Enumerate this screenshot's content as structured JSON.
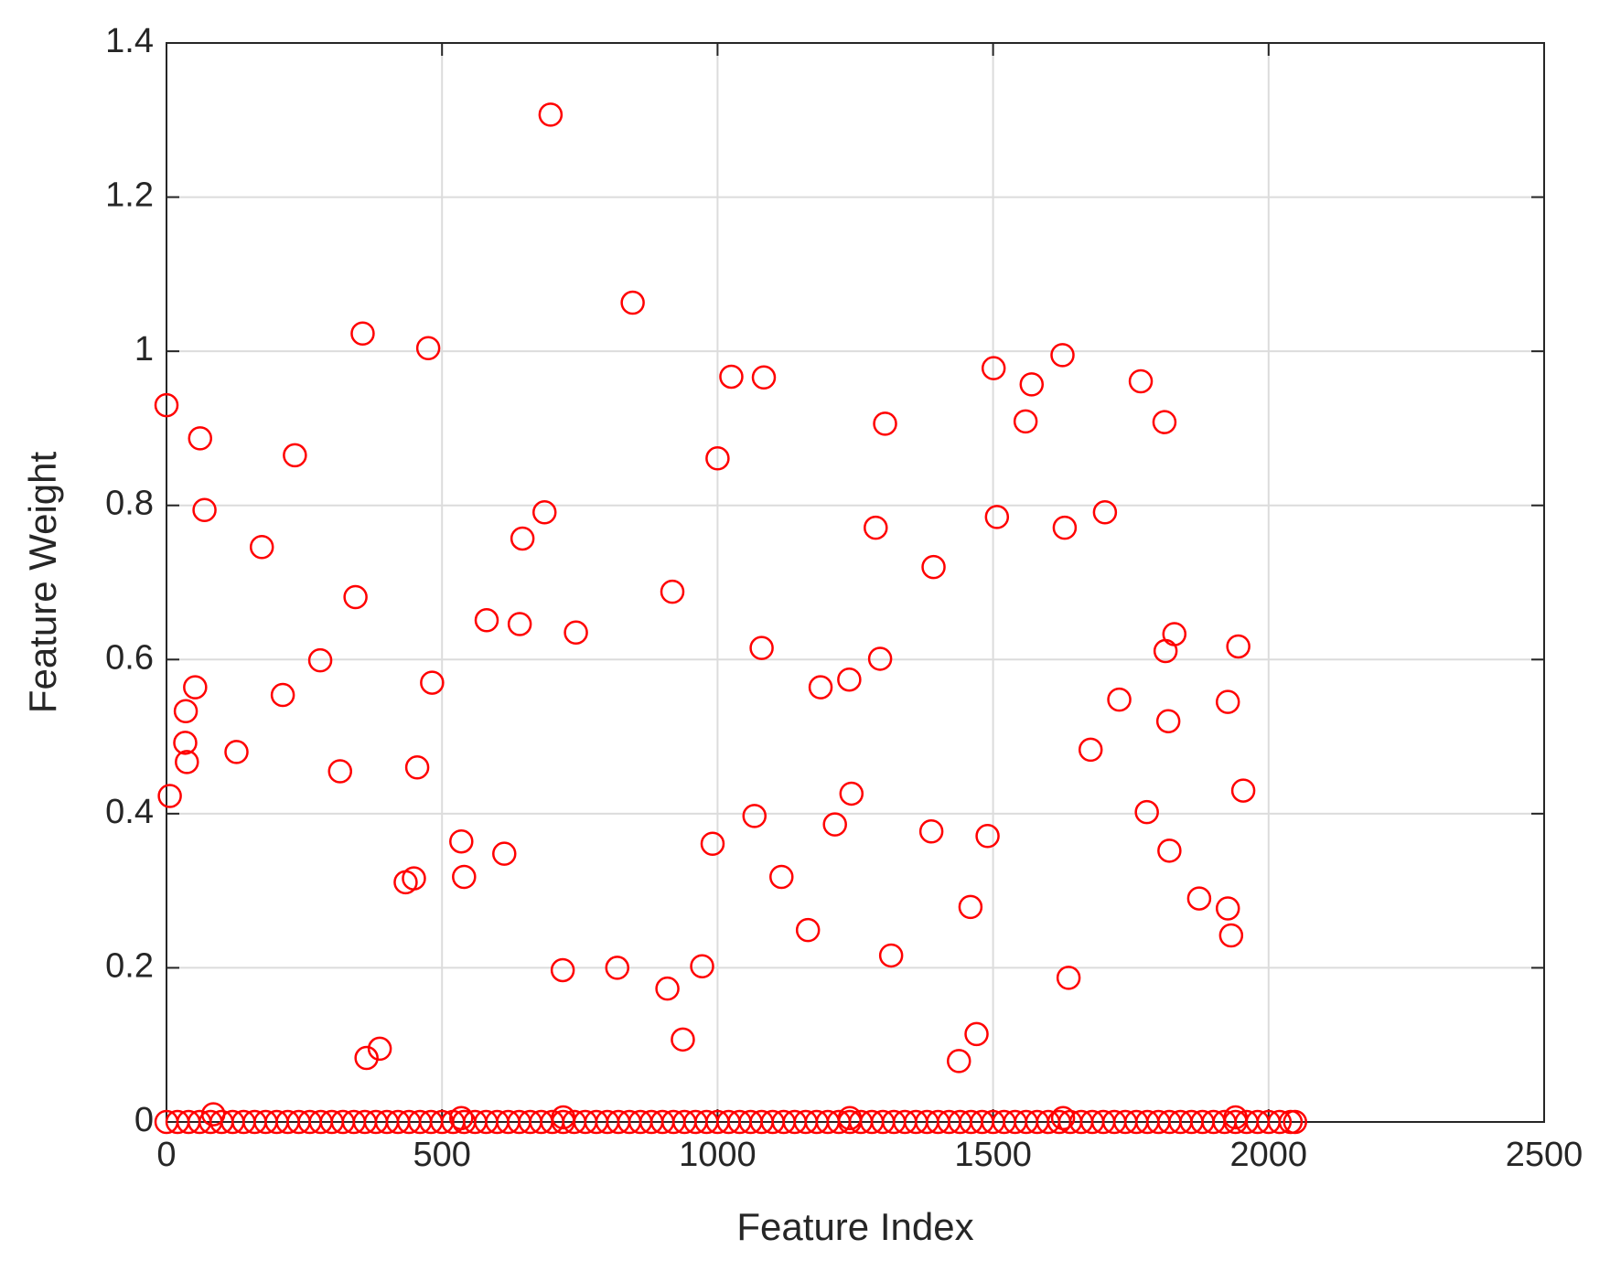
{
  "chart_data": {
    "type": "scatter",
    "xlabel": "Feature Index",
    "ylabel": "Feature Weight",
    "color": "#ff0000",
    "grid": true,
    "xlim": [
      0,
      2500
    ],
    "xticks": [
      0,
      500,
      1000,
      1500,
      2000,
      2500
    ],
    "ylim": [
      0,
      1.4
    ],
    "yticks": [
      0,
      0.2,
      0.4,
      0.6,
      0.8,
      1,
      1.2,
      1.4
    ],
    "x": [
      0,
      6,
      61,
      69,
      52,
      35,
      34,
      37,
      127,
      173,
      211,
      233,
      279,
      315,
      343,
      356,
      363,
      387,
      434,
      449,
      455,
      475,
      482,
      535,
      540,
      581,
      613,
      641,
      646,
      686,
      697,
      719,
      743,
      818,
      846,
      909,
      918,
      937,
      972,
      991,
      1000,
      1025,
      1067,
      1080,
      1084,
      1116,
      1164,
      1187,
      1213,
      1239,
      1243,
      1287,
      1295,
      1304,
      1315,
      1388,
      1392,
      1438,
      1459,
      1470,
      1490,
      1501,
      1507,
      1559,
      1570,
      1626,
      1630,
      1637,
      1677,
      1703,
      1729,
      1768,
      1779,
      1811,
      1813,
      1818,
      1820,
      1829,
      1874,
      1926,
      1926,
      1932,
      1945,
      1954,
      85,
      535,
      720,
      1240,
      1627,
      1940,
      0,
      20,
      40,
      60,
      80,
      100,
      120,
      140,
      160,
      180,
      200,
      220,
      240,
      260,
      280,
      300,
      320,
      340,
      360,
      380,
      400,
      420,
      440,
      460,
      480,
      500,
      520,
      540,
      560,
      580,
      600,
      620,
      640,
      660,
      680,
      700,
      720,
      740,
      760,
      780,
      800,
      820,
      840,
      860,
      880,
      900,
      920,
      940,
      960,
      980,
      1000,
      1020,
      1040,
      1060,
      1080,
      1100,
      1120,
      1140,
      1160,
      1180,
      1200,
      1220,
      1240,
      1260,
      1280,
      1300,
      1320,
      1340,
      1360,
      1380,
      1400,
      1420,
      1440,
      1460,
      1480,
      1500,
      1520,
      1540,
      1560,
      1580,
      1600,
      1620,
      1640,
      1660,
      1680,
      1700,
      1720,
      1740,
      1760,
      1780,
      1800,
      1820,
      1840,
      1860,
      1880,
      1900,
      1920,
      1940,
      1960,
      1980,
      2000,
      2020,
      2040,
      2048
    ],
    "values": [
      0.93,
      0.423,
      0.887,
      0.794,
      0.564,
      0.533,
      0.492,
      0.467,
      0.48,
      0.746,
      0.554,
      0.865,
      0.599,
      0.455,
      0.681,
      1.023,
      0.083,
      0.095,
      0.311,
      0.316,
      0.46,
      1.004,
      0.57,
      0.364,
      0.318,
      0.651,
      0.348,
      0.646,
      0.757,
      0.791,
      1.307,
      0.197,
      0.635,
      0.2,
      1.063,
      0.173,
      0.688,
      0.107,
      0.202,
      0.361,
      0.861,
      0.967,
      0.397,
      0.615,
      0.966,
      0.318,
      0.249,
      0.564,
      0.386,
      0.574,
      0.426,
      0.771,
      0.601,
      0.906,
      0.216,
      0.377,
      0.72,
      0.079,
      0.279,
      0.114,
      0.371,
      0.978,
      0.785,
      0.909,
      0.957,
      0.995,
      0.771,
      0.187,
      0.483,
      0.791,
      0.548,
      0.961,
      0.402,
      0.908,
      0.611,
      0.52,
      0.352,
      0.633,
      0.29,
      0.277,
      0.545,
      0.242,
      0.617,
      0.43,
      0.01,
      0.005,
      0.006,
      0.005,
      0.005,
      0.006,
      0,
      0,
      0,
      0,
      0,
      0,
      0,
      0,
      0,
      0,
      0,
      0,
      0,
      0,
      0,
      0,
      0,
      0,
      0,
      0,
      0,
      0,
      0,
      0,
      0,
      0,
      0,
      0,
      0,
      0,
      0,
      0,
      0,
      0,
      0,
      0,
      0,
      0,
      0,
      0,
      0,
      0,
      0,
      0,
      0,
      0,
      0,
      0,
      0,
      0,
      0,
      0,
      0,
      0,
      0,
      0,
      0,
      0,
      0,
      0,
      0,
      0,
      0,
      0,
      0,
      0,
      0,
      0,
      0,
      0,
      0,
      0,
      0,
      0,
      0,
      0,
      0,
      0,
      0,
      0,
      0,
      0,
      0,
      0,
      0,
      0,
      0,
      0,
      0,
      0,
      0,
      0,
      0,
      0,
      0,
      0,
      0,
      0,
      0,
      0,
      0,
      0,
      0,
      0
    ]
  }
}
